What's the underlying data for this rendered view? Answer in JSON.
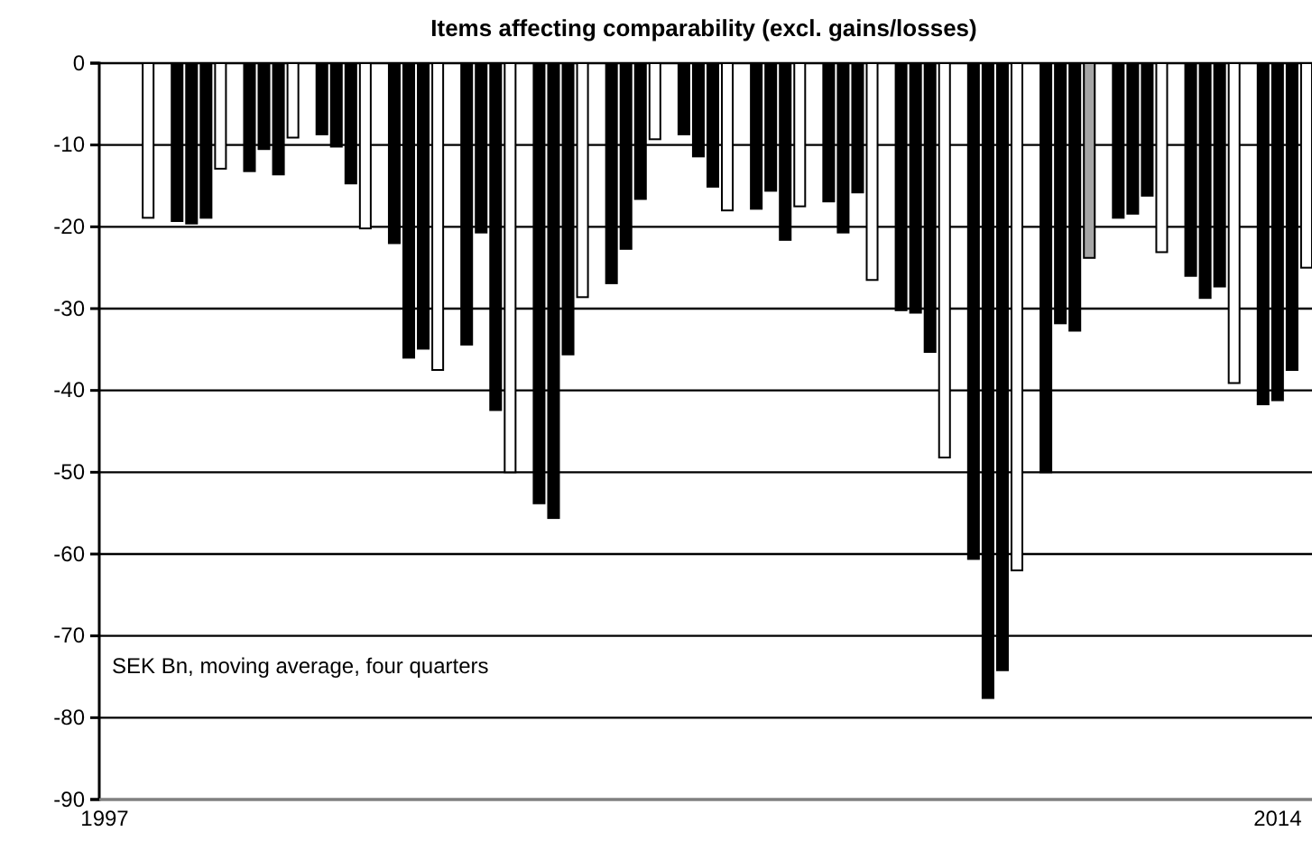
{
  "chart_data": {
    "type": "bar",
    "title": "Items affecting comparability (excl. gains/losses)",
    "annotations": [
      "SEK Bn, moving average, four quarters"
    ],
    "categories": [
      "1997",
      null,
      null,
      null,
      null,
      null,
      null,
      null,
      null,
      null,
      null,
      null,
      null,
      null,
      null,
      null,
      null,
      null,
      null,
      null,
      null,
      null,
      null,
      null,
      null,
      null,
      null,
      null,
      null,
      null,
      null,
      null,
      null,
      null,
      null,
      null,
      null,
      null,
      null,
      null,
      null,
      null,
      null,
      null,
      null,
      null,
      null,
      null,
      null,
      null,
      null,
      null,
      null,
      null,
      null,
      null,
      null,
      null,
      null,
      null,
      null,
      null,
      null,
      null,
      null,
      null,
      null,
      null,
      null,
      null,
      null,
      null,
      null,
      null,
      null,
      null,
      null,
      null,
      null,
      null,
      null,
      "2014",
      null,
      null,
      null
    ],
    "values": [
      null,
      null,
      null,
      -18.9,
      null,
      -19.3,
      -19.6,
      -18.9,
      -12.9,
      null,
      -13.2,
      -10.5,
      -13.6,
      -9.1,
      null,
      -8.7,
      -10.2,
      -14.7,
      -20.2,
      null,
      -22,
      -36,
      -34.9,
      -37.5,
      null,
      -34.4,
      -20.7,
      -42.4,
      -50,
      null,
      -53.8,
      -55.6,
      -35.6,
      -28.6,
      null,
      -26.9,
      -22.7,
      -16.6,
      -9.3,
      null,
      -8.7,
      -11.4,
      -15.1,
      -18,
      null,
      -17.8,
      -15.6,
      -21.6,
      -17.5,
      null,
      -16.9,
      -20.7,
      -15.8,
      -26.5,
      null,
      -30.2,
      -30.5,
      -35.3,
      -48.2,
      null,
      -60.6,
      -77.6,
      -74.2,
      -62,
      null,
      -50,
      -31.8,
      -32.7,
      -23.8,
      null,
      -18.9,
      -18.4,
      -16.2,
      -23.1,
      null,
      -26,
      -28.7,
      -27.3,
      -39.1,
      null,
      -41.7,
      -41.2,
      -37.5,
      -25,
      null
    ],
    "colors": [
      null,
      null,
      null,
      "#ffffff",
      null,
      "#000000",
      "#000000",
      "#000000",
      "#ffffff",
      null,
      "#000000",
      "#000000",
      "#000000",
      "#ffffff",
      null,
      "#000000",
      "#000000",
      "#000000",
      "#ffffff",
      null,
      "#000000",
      "#000000",
      "#000000",
      "#ffffff",
      null,
      "#000000",
      "#000000",
      "#000000",
      "#ffffff",
      null,
      "#000000",
      "#000000",
      "#000000",
      "#ffffff",
      null,
      "#000000",
      "#000000",
      "#000000",
      "#ffffff",
      null,
      "#000000",
      "#000000",
      "#000000",
      "#ffffff",
      null,
      "#000000",
      "#000000",
      "#000000",
      "#ffffff",
      null,
      "#000000",
      "#000000",
      "#000000",
      "#ffffff",
      null,
      "#000000",
      "#000000",
      "#000000",
      "#ffffff",
      null,
      "#000000",
      "#000000",
      "#000000",
      "#ffffff",
      null,
      "#000000",
      "#000000",
      "#000000",
      "#a6a6a6",
      null,
      "#000000",
      "#000000",
      "#000000",
      "#ffffff",
      null,
      "#000000",
      "#000000",
      "#000000",
      "#ffffff",
      null,
      "#000000",
      "#000000",
      "#000000",
      "#ffffff",
      null
    ],
    "ylim": [
      -90,
      0
    ],
    "yticks": [
      0,
      -10,
      -20,
      -30,
      -40,
      -50,
      -60,
      -70,
      -80,
      -90
    ],
    "grid": "y"
  }
}
